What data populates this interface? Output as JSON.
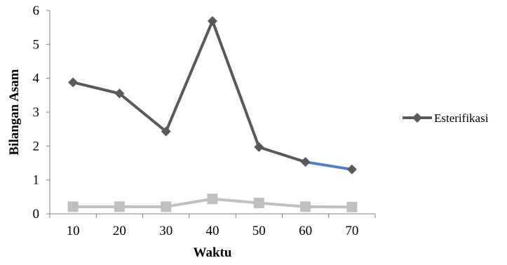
{
  "chart_data": {
    "type": "line",
    "x": [
      10,
      20,
      30,
      40,
      50,
      60,
      70
    ],
    "categories": [
      "10",
      "20",
      "30",
      "40",
      "50",
      "60",
      "70"
    ],
    "xlabel": "Waktu",
    "ylabel": "Bilangan Asam",
    "ylim": [
      0,
      6
    ],
    "yticks": [
      "0",
      "1",
      "2",
      "3",
      "4",
      "5",
      "6"
    ],
    "grid": false,
    "legend_position": "right",
    "series": [
      {
        "name": "Esterifikasi",
        "values": [
          3.88,
          3.55,
          2.43,
          5.69,
          1.97,
          1.53,
          1.31
        ],
        "color": "#595959",
        "marker": "diamond",
        "last_segment_color": "#4f81bd"
      },
      {
        "values": [
          0.21,
          0.21,
          0.21,
          0.44,
          0.32,
          0.21,
          0.2
        ],
        "color": "#bfbfbf",
        "marker": "square"
      }
    ]
  }
}
